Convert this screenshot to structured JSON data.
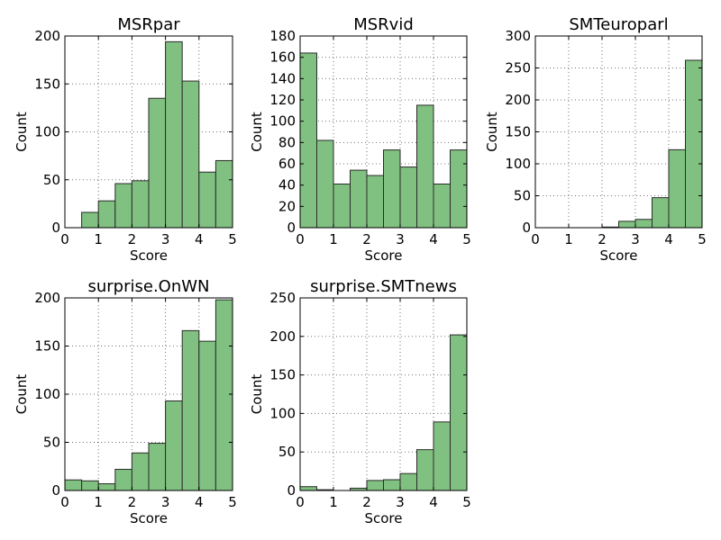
{
  "colors": {
    "bar_fill": "#80c080",
    "bar_edge": "#2b2b2b",
    "axis": "#000000"
  },
  "chart_data": [
    {
      "type": "bar",
      "title": "MSRpar",
      "xlabel": "Score",
      "ylabel": "Count",
      "grid": true,
      "xlim": [
        0,
        5
      ],
      "ylim": [
        0,
        200
      ],
      "xticks": [
        0,
        1,
        2,
        3,
        4,
        5
      ],
      "yticks": [
        0,
        50,
        100,
        150,
        200
      ],
      "bin_edges": [
        0,
        0.5,
        1,
        1.5,
        2,
        2.5,
        3,
        3.5,
        4,
        4.5,
        5
      ],
      "values": [
        0,
        16,
        28,
        46,
        49,
        135,
        194,
        153,
        58,
        70
      ]
    },
    {
      "type": "bar",
      "title": "MSRvid",
      "xlabel": "Score",
      "ylabel": "Count",
      "grid": true,
      "xlim": [
        0,
        5
      ],
      "ylim": [
        0,
        180
      ],
      "xticks": [
        0,
        1,
        2,
        3,
        4,
        5
      ],
      "yticks": [
        0,
        20,
        40,
        60,
        80,
        100,
        120,
        140,
        160,
        180
      ],
      "bin_edges": [
        0,
        0.5,
        1,
        1.5,
        2,
        2.5,
        3,
        3.5,
        4,
        4.5,
        5
      ],
      "values": [
        164,
        82,
        41,
        54,
        49,
        73,
        57,
        115,
        41,
        73
      ]
    },
    {
      "type": "bar",
      "title": "SMTeuroparl",
      "xlabel": "Score",
      "ylabel": "Count",
      "grid": true,
      "xlim": [
        0,
        5
      ],
      "ylim": [
        0,
        300
      ],
      "xticks": [
        0,
        1,
        2,
        3,
        4,
        5
      ],
      "yticks": [
        0,
        50,
        100,
        150,
        200,
        250,
        300
      ],
      "bin_edges": [
        0,
        0.5,
        1,
        1.5,
        2,
        2.5,
        3,
        3.5,
        4,
        4.5,
        5
      ],
      "values": [
        0,
        0,
        0,
        0,
        1,
        10,
        13,
        47,
        122,
        262
      ]
    },
    {
      "type": "bar",
      "title": "surprise.OnWN",
      "xlabel": "Score",
      "ylabel": "Count",
      "grid": true,
      "xlim": [
        0,
        5
      ],
      "ylim": [
        0,
        200
      ],
      "xticks": [
        0,
        1,
        2,
        3,
        4,
        5
      ],
      "yticks": [
        0,
        50,
        100,
        150,
        200
      ],
      "bin_edges": [
        0,
        0.5,
        1,
        1.5,
        2,
        2.5,
        3,
        3.5,
        4,
        4.5,
        5
      ],
      "values": [
        11,
        10,
        7,
        22,
        39,
        49,
        93,
        166,
        155,
        198
      ]
    },
    {
      "type": "bar",
      "title": "surprise.SMTnews",
      "xlabel": "Score",
      "ylabel": "Count",
      "grid": true,
      "xlim": [
        0,
        5
      ],
      "ylim": [
        0,
        250
      ],
      "xticks": [
        0,
        1,
        2,
        3,
        4,
        5
      ],
      "yticks": [
        0,
        50,
        100,
        150,
        200,
        250
      ],
      "bin_edges": [
        0,
        0.5,
        1,
        1.5,
        2,
        2.5,
        3,
        3.5,
        4,
        4.5,
        5
      ],
      "values": [
        5,
        1,
        0,
        3,
        13,
        14,
        22,
        53,
        89,
        202
      ]
    }
  ]
}
